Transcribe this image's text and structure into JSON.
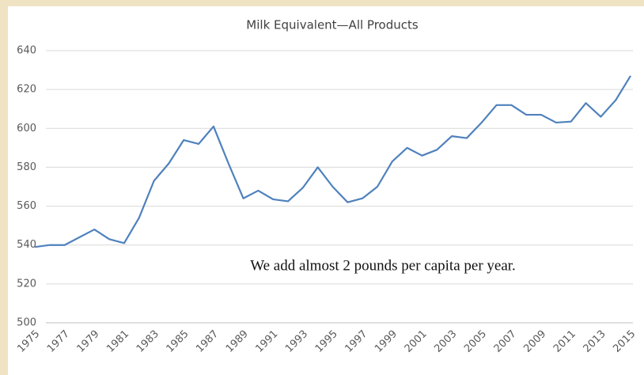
{
  "chart_data": {
    "type": "line",
    "title": "Milk Equivalent—All Products",
    "annotation": "We add almost 2 pounds per capita per year.",
    "categories": [
      "1975",
      null,
      "1977",
      null,
      "1979",
      null,
      "1981",
      null,
      "1983",
      null,
      "1985",
      null,
      "1987",
      null,
      "1989",
      null,
      "1991",
      null,
      "1993",
      null,
      "1995",
      null,
      "1997",
      null,
      "1999",
      null,
      "2001",
      null,
      "2003",
      null,
      "2005",
      null,
      "2007",
      null,
      "2009",
      null,
      "2011",
      null,
      "2013",
      null,
      "2015"
    ],
    "series": [
      {
        "name": "Milk Equivalent",
        "color": "#4f81bd",
        "values": [
          539,
          540,
          540,
          544,
          548,
          543,
          541,
          554,
          573,
          582,
          594,
          592,
          601,
          582,
          564,
          568,
          563.5,
          562.5,
          569.5,
          580,
          570,
          562,
          564,
          570,
          583,
          590,
          586,
          589,
          596,
          595,
          603,
          612,
          612,
          607,
          607,
          603,
          603.5,
          613,
          606,
          614.5,
          627
        ]
      }
    ],
    "ylim": [
      500,
      640
    ],
    "yticks": [
      500,
      520,
      540,
      560,
      580,
      600,
      620,
      640
    ],
    "grid": true
  }
}
